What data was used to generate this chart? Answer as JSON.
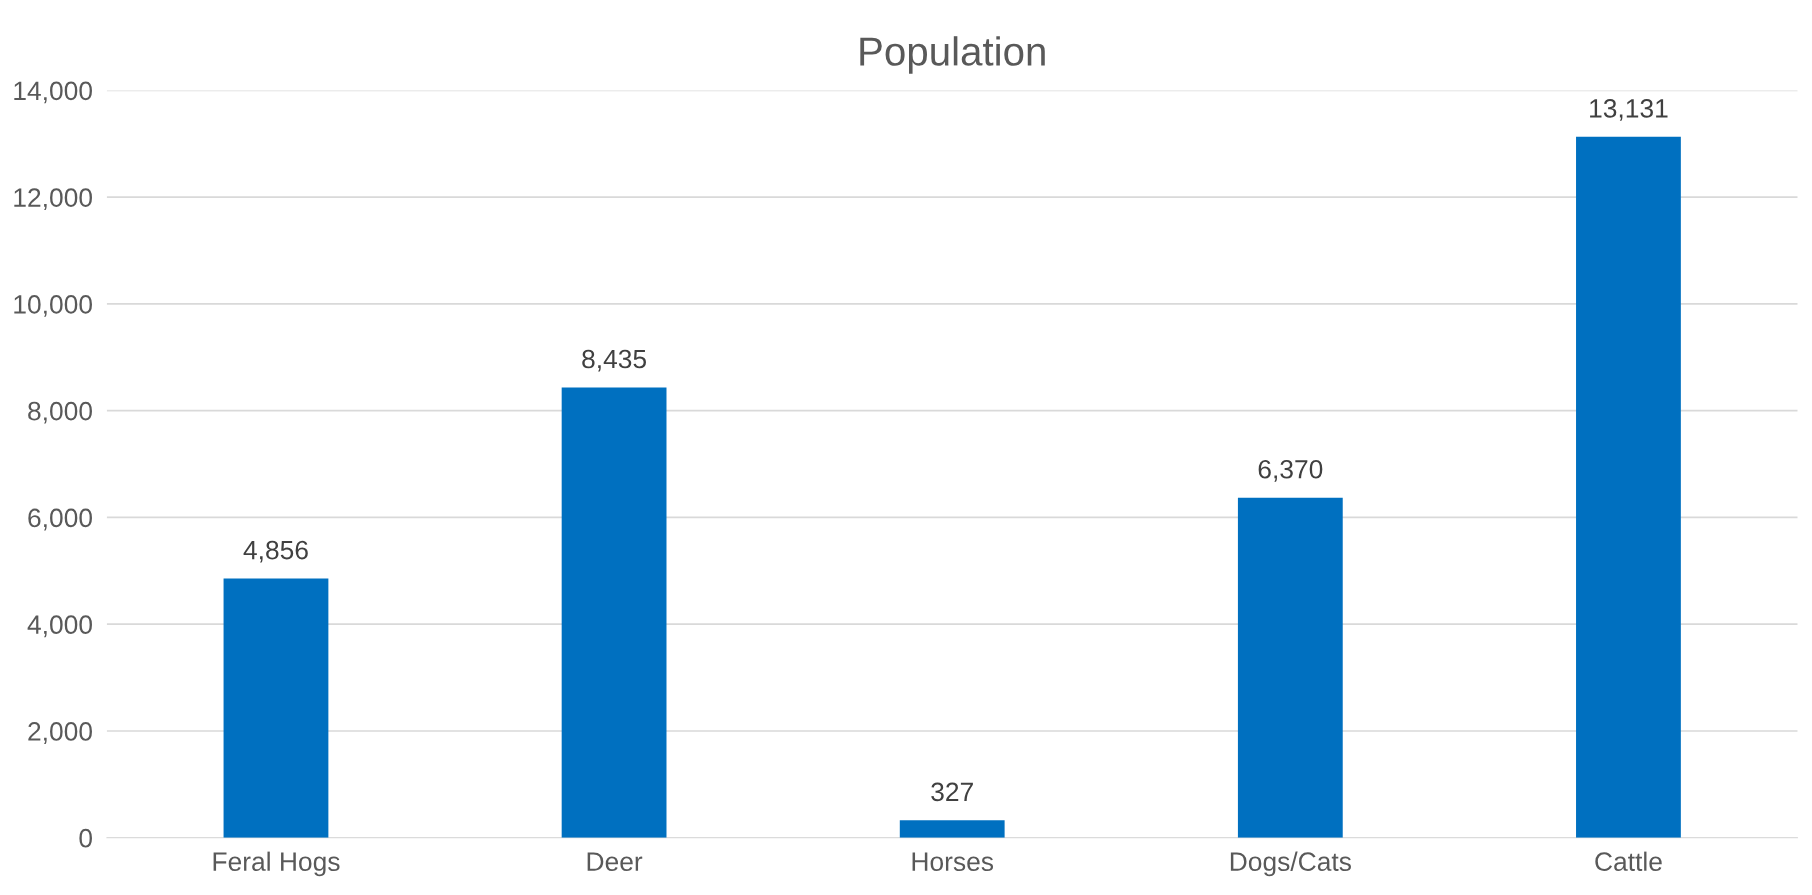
{
  "chart_data": {
    "type": "bar",
    "title": "Population",
    "categories": [
      "Feral Hogs",
      "Deer",
      "Horses",
      "Dogs/Cats",
      "Cattle"
    ],
    "values": [
      4856,
      8435,
      327,
      6370,
      13131
    ],
    "value_labels": [
      "4,856",
      "8,435",
      "327",
      "6,370",
      "13,131"
    ],
    "color": "#0070c0",
    "ylim": [
      0,
      14000
    ],
    "yticks": [
      {
        "value": 0,
        "label": "0"
      },
      {
        "value": 2000,
        "label": "2,000"
      },
      {
        "value": 4000,
        "label": "4,000"
      },
      {
        "value": 6000,
        "label": "6,000"
      },
      {
        "value": 8000,
        "label": "8,000"
      },
      {
        "value": 10000,
        "label": "10,000"
      },
      {
        "value": 12000,
        "label": "12,000"
      },
      {
        "value": 14000,
        "label": "14,000"
      }
    ],
    "grid": "y"
  }
}
